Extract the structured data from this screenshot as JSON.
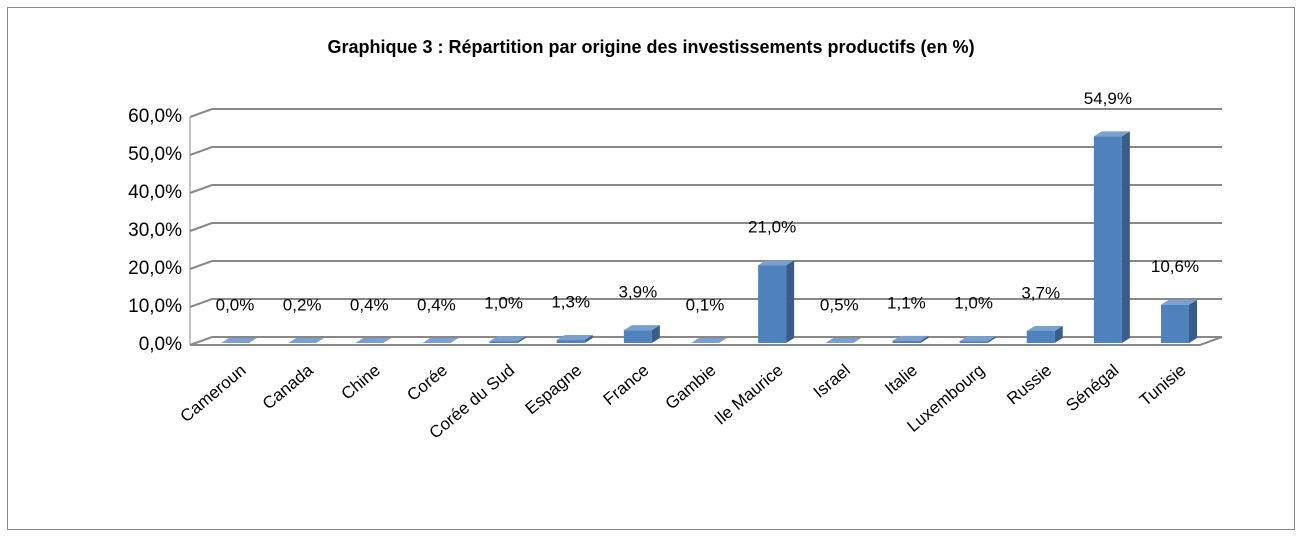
{
  "chart_data": {
    "type": "bar3d",
    "title": "Graphique 3 : Répartition  par origine des investissements  productifs (en %)",
    "categories": [
      "Cameroun",
      "Canada",
      "Chine",
      "Corée",
      "Corée du Sud",
      "Espagne",
      "France",
      "Gambie",
      "Ile Maurice",
      "Israel",
      "Italie",
      "Luxembourg",
      "Russie",
      "Sénégal",
      "Tunisie"
    ],
    "values": [
      0.0,
      0.2,
      0.4,
      0.4,
      1.0,
      1.3,
      3.9,
      0.1,
      21.0,
      0.5,
      1.1,
      1.0,
      3.7,
      54.9,
      10.6
    ],
    "value_labels": [
      "0,0%",
      "0,2%",
      "0,4%",
      "0,4%",
      "1,0%",
      "1,3%",
      "3,9%",
      "0,1%",
      "21,0%",
      "0,5%",
      "1,1%",
      "1,0%",
      "3,7%",
      "54,9%",
      "10,6%"
    ],
    "color": "#4f81bd",
    "ylim": [
      0,
      60
    ],
    "yticks": [
      {
        "value": 0,
        "label": "0,0%"
      },
      {
        "value": 10,
        "label": "10,0%"
      },
      {
        "value": 20,
        "label": "20,0%"
      },
      {
        "value": 30,
        "label": "30,0%"
      },
      {
        "value": 40,
        "label": "40,0%"
      },
      {
        "value": 50,
        "label": "50,0%"
      },
      {
        "value": 60,
        "label": "60,0%"
      }
    ],
    "grid": true
  }
}
